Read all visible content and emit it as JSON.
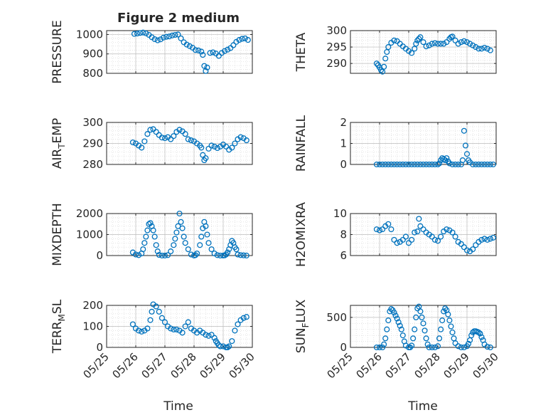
{
  "figure": {
    "title": "Figure 2 medium",
    "xlabel": "Time"
  },
  "chart_data": [
    {
      "type": "scatter",
      "ylabel": "PRESSURE",
      "ylabel_sub": "",
      "xlim": [
        "05/25",
        "05/30"
      ],
      "ylim": [
        800,
        1020
      ],
      "yticks": [
        800,
        900,
        1000
      ],
      "xticks": [
        "05/25",
        "05/26",
        "05/27",
        "05/28",
        "05/29",
        "05/30"
      ],
      "grid": true,
      "color": "#0072BD",
      "x": [
        25.95,
        26.05,
        26.15,
        26.25,
        26.35,
        26.45,
        26.55,
        26.65,
        26.75,
        26.85,
        26.95,
        27.05,
        27.15,
        27.25,
        27.35,
        27.45,
        27.55,
        27.65,
        27.75,
        27.85,
        27.95,
        28.05,
        28.15,
        28.25,
        28.3,
        28.35,
        28.4,
        28.45,
        28.55,
        28.65,
        28.75,
        28.85,
        28.95,
        29.05,
        29.15,
        29.25,
        29.35,
        29.45,
        29.55,
        29.65,
        29.75,
        29.85
      ],
      "y": [
        1003,
        1005,
        1008,
        1010,
        1006,
        998,
        986,
        976,
        970,
        975,
        984,
        988,
        990,
        995,
        998,
        1000,
        980,
        960,
        948,
        940,
        932,
        920,
        918,
        912,
        895,
        838,
        812,
        830,
        905,
        908,
        902,
        890,
        905,
        915,
        922,
        930,
        945,
        962,
        972,
        978,
        980,
        972
      ]
    },
    {
      "type": "scatter",
      "ylabel": "THETA",
      "ylabel_sub": "",
      "xlim": [
        "05/25",
        "05/30"
      ],
      "ylim": [
        287,
        300
      ],
      "yticks": [
        290,
        295,
        300
      ],
      "xticks": [
        "05/25",
        "05/26",
        "05/27",
        "05/28",
        "05/29",
        "05/30"
      ],
      "grid": true,
      "color": "#0072BD",
      "x": [
        25.9,
        25.95,
        26.0,
        26.05,
        26.1,
        26.15,
        26.2,
        26.25,
        26.3,
        26.4,
        26.5,
        26.6,
        26.7,
        26.8,
        26.9,
        27.0,
        27.1,
        27.2,
        27.25,
        27.3,
        27.35,
        27.4,
        27.5,
        27.6,
        27.7,
        27.8,
        27.9,
        28.0,
        28.1,
        28.2,
        28.3,
        28.4,
        28.45,
        28.5,
        28.6,
        28.7,
        28.8,
        28.9,
        29.0,
        29.1,
        29.2,
        29.3,
        29.4,
        29.5,
        29.6,
        29.7,
        29.8
      ],
      "y": [
        290.0,
        289.5,
        288.8,
        288.0,
        287.5,
        289.0,
        291.5,
        293.5,
        295.0,
        296.3,
        297.0,
        296.8,
        296.0,
        295.2,
        294.5,
        293.8,
        293.2,
        294.5,
        296.0,
        297.0,
        297.5,
        298.0,
        296.5,
        295.2,
        295.5,
        296.0,
        296.2,
        296.0,
        296.0,
        296.0,
        296.5,
        297.5,
        298.0,
        298.2,
        297.0,
        296.0,
        296.5,
        296.8,
        296.5,
        296.0,
        295.5,
        295.0,
        294.5,
        294.5,
        294.8,
        294.5,
        294.0
      ]
    },
    {
      "type": "scatter",
      "ylabel": "AIR",
      "ylabel_sub": "T",
      "ylabel_rest": "EMP",
      "xlim": [
        "05/25",
        "05/30"
      ],
      "ylim": [
        280,
        300
      ],
      "yticks": [
        280,
        290,
        300
      ],
      "xticks": [
        "05/25",
        "05/26",
        "05/27",
        "05/28",
        "05/29",
        "05/30"
      ],
      "grid": true,
      "color": "#0072BD",
      "x": [
        25.9,
        26.0,
        26.1,
        26.2,
        26.3,
        26.4,
        26.5,
        26.6,
        26.7,
        26.8,
        26.9,
        27.0,
        27.1,
        27.2,
        27.3,
        27.4,
        27.5,
        27.6,
        27.7,
        27.8,
        27.9,
        28.0,
        28.1,
        28.2,
        28.25,
        28.3,
        28.35,
        28.4,
        28.5,
        28.6,
        28.7,
        28.8,
        28.9,
        29.0,
        29.1,
        29.2,
        29.3,
        29.4,
        29.5,
        29.6,
        29.7,
        29.8
      ],
      "y": [
        290.5,
        290.0,
        289.0,
        288.0,
        291.0,
        294.5,
        296.5,
        296.8,
        295.5,
        294.0,
        292.8,
        292.5,
        293.0,
        292.0,
        293.5,
        295.5,
        296.5,
        295.8,
        294.5,
        292.0,
        291.5,
        291.0,
        290.0,
        289.0,
        288.0,
        284.5,
        282.0,
        283.0,
        287.5,
        289.0,
        288.5,
        287.8,
        288.5,
        289.5,
        288.5,
        287.0,
        288.0,
        290.0,
        292.0,
        293.0,
        292.5,
        291.5
      ]
    },
    {
      "type": "scatter",
      "ylabel": "RAINFALL",
      "ylabel_sub": "",
      "xlim": [
        "05/25",
        "05/30"
      ],
      "ylim": [
        0,
        2
      ],
      "yticks": [
        0,
        1,
        2
      ],
      "xticks": [
        "05/25",
        "05/26",
        "05/27",
        "05/28",
        "05/29",
        "05/30"
      ],
      "grid": true,
      "color": "#0072BD",
      "x": [
        25.9,
        26.0,
        26.1,
        26.2,
        26.3,
        26.4,
        26.5,
        26.6,
        26.7,
        26.8,
        26.9,
        27.0,
        27.1,
        27.2,
        27.3,
        27.4,
        27.5,
        27.6,
        27.7,
        27.8,
        27.9,
        28.0,
        28.05,
        28.1,
        28.15,
        28.2,
        28.25,
        28.3,
        28.35,
        28.4,
        28.5,
        28.6,
        28.7,
        28.8,
        28.85,
        28.9,
        28.95,
        29.0,
        29.05,
        29.1,
        29.2,
        29.3,
        29.4,
        29.5,
        29.6,
        29.7,
        29.8,
        29.9
      ],
      "y": [
        0,
        0,
        0,
        0,
        0,
        0,
        0,
        0,
        0,
        0,
        0,
        0,
        0,
        0,
        0,
        0,
        0,
        0,
        0,
        0,
        0,
        0,
        0.05,
        0.2,
        0.3,
        0.25,
        0.2,
        0.3,
        0.15,
        0.05,
        0,
        0,
        0,
        0,
        0.2,
        1.6,
        0.9,
        0.5,
        0.2,
        0.1,
        0,
        0,
        0,
        0,
        0,
        0,
        0,
        0
      ]
    },
    {
      "type": "scatter",
      "ylabel": "MIXDEPTH",
      "ylabel_sub": "",
      "xlim": [
        "05/25",
        "05/30"
      ],
      "ylim": [
        0,
        2000
      ],
      "yticks": [
        0,
        1000,
        2000
      ],
      "xticks": [
        "05/25",
        "05/26",
        "05/27",
        "05/28",
        "05/29",
        "05/30"
      ],
      "grid": true,
      "color": "#0072BD",
      "x": [
        25.9,
        26.0,
        26.1,
        26.2,
        26.25,
        26.3,
        26.35,
        26.4,
        26.45,
        26.5,
        26.55,
        26.6,
        26.65,
        26.7,
        26.75,
        26.8,
        26.9,
        27.0,
        27.1,
        27.2,
        27.3,
        27.35,
        27.4,
        27.45,
        27.5,
        27.55,
        27.6,
        27.65,
        27.7,
        27.8,
        27.9,
        28.0,
        28.05,
        28.1,
        28.2,
        28.25,
        28.3,
        28.35,
        28.4,
        28.45,
        28.5,
        28.6,
        28.7,
        28.8,
        28.9,
        29.0,
        29.05,
        29.1,
        29.15,
        29.2,
        29.25,
        29.3,
        29.35,
        29.4,
        29.45,
        29.5,
        29.6,
        29.7,
        29.8
      ],
      "y": [
        150,
        50,
        20,
        100,
        300,
        600,
        900,
        1200,
        1500,
        1550,
        1400,
        1200,
        900,
        500,
        200,
        30,
        0,
        0,
        20,
        200,
        500,
        800,
        1100,
        1400,
        2000,
        1600,
        1300,
        900,
        600,
        300,
        50,
        0,
        20,
        100,
        500,
        900,
        1300,
        1600,
        1400,
        1000,
        600,
        300,
        100,
        20,
        0,
        0,
        10,
        50,
        150,
        300,
        500,
        700,
        600,
        400,
        300,
        50,
        20,
        10,
        0
      ]
    },
    {
      "type": "scatter",
      "ylabel": "H2OMIXRA",
      "ylabel_sub": "",
      "xlim": [
        "05/25",
        "05/30"
      ],
      "ylim": [
        6,
        10
      ],
      "yticks": [
        6,
        8,
        10
      ],
      "xticks": [
        "05/25",
        "05/26",
        "05/27",
        "05/28",
        "05/29",
        "05/30"
      ],
      "grid": true,
      "color": "#0072BD",
      "x": [
        25.9,
        26.0,
        26.1,
        26.2,
        26.3,
        26.4,
        26.5,
        26.6,
        26.7,
        26.8,
        26.9,
        27.0,
        27.1,
        27.2,
        27.3,
        27.35,
        27.4,
        27.5,
        27.6,
        27.7,
        27.8,
        27.9,
        28.0,
        28.1,
        28.2,
        28.3,
        28.4,
        28.5,
        28.6,
        28.7,
        28.8,
        28.9,
        29.0,
        29.1,
        29.2,
        29.3,
        29.4,
        29.5,
        29.6,
        29.7,
        29.8,
        29.9
      ],
      "y": [
        8.5,
        8.4,
        8.5,
        8.8,
        9.0,
        8.5,
        7.5,
        7.2,
        7.3,
        7.5,
        7.8,
        7.2,
        7.5,
        8.2,
        8.3,
        9.5,
        8.8,
        8.5,
        8.2,
        8.0,
        7.8,
        7.5,
        7.4,
        7.8,
        8.3,
        8.5,
        8.4,
        8.2,
        7.8,
        7.3,
        7.1,
        6.8,
        6.5,
        6.4,
        6.6,
        7.0,
        7.3,
        7.5,
        7.6,
        7.5,
        7.6,
        7.7
      ]
    },
    {
      "type": "scatter",
      "ylabel": "TERR",
      "ylabel_sub": "M",
      "ylabel_rest": "SL",
      "xlim": [
        "05/25",
        "05/30"
      ],
      "ylim": [
        0,
        200
      ],
      "yticks": [
        0,
        100,
        200
      ],
      "xticks": [
        "05/25",
        "05/26",
        "05/27",
        "05/28",
        "05/29",
        "05/30"
      ],
      "grid": true,
      "color": "#0072BD",
      "x": [
        25.9,
        26.0,
        26.1,
        26.2,
        26.3,
        26.4,
        26.5,
        26.55,
        26.6,
        26.7,
        26.8,
        26.9,
        27.0,
        27.1,
        27.2,
        27.3,
        27.4,
        27.5,
        27.6,
        27.7,
        27.8,
        27.9,
        28.0,
        28.1,
        28.2,
        28.3,
        28.4,
        28.5,
        28.6,
        28.7,
        28.75,
        28.8,
        28.85,
        28.9,
        29.0,
        29.1,
        29.15,
        29.2,
        29.3,
        29.4,
        29.5,
        29.6,
        29.7,
        29.8
      ],
      "y": [
        110,
        90,
        80,
        75,
        80,
        90,
        130,
        170,
        205,
        195,
        170,
        140,
        120,
        100,
        90,
        85,
        85,
        80,
        70,
        100,
        120,
        90,
        80,
        70,
        80,
        70,
        60,
        55,
        60,
        45,
        30,
        20,
        10,
        5,
        5,
        0,
        0,
        5,
        30,
        80,
        110,
        130,
        140,
        145
      ]
    },
    {
      "type": "scatter",
      "ylabel": "SUN",
      "ylabel_sub": "F",
      "ylabel_rest": "LUX",
      "xlim": [
        "05/25",
        "05/30"
      ],
      "ylim": [
        0,
        700
      ],
      "yticks": [
        0,
        500
      ],
      "xticks": [
        "05/25",
        "05/26",
        "05/27",
        "05/28",
        "05/29",
        "05/30"
      ],
      "grid": true,
      "color": "#0072BD",
      "x": [
        25.9,
        26.0,
        26.1,
        26.15,
        26.2,
        26.25,
        26.3,
        26.35,
        26.4,
        26.45,
        26.5,
        26.55,
        26.6,
        26.65,
        26.7,
        26.75,
        26.8,
        26.85,
        26.9,
        27.0,
        27.05,
        27.1,
        27.15,
        27.2,
        27.25,
        27.3,
        27.35,
        27.4,
        27.45,
        27.5,
        27.55,
        27.6,
        27.65,
        27.7,
        27.8,
        27.9,
        28.0,
        28.05,
        28.1,
        28.15,
        28.2,
        28.25,
        28.3,
        28.35,
        28.4,
        28.45,
        28.5,
        28.55,
        28.6,
        28.7,
        28.8,
        28.9,
        29.0,
        29.05,
        29.1,
        29.15,
        29.2,
        29.25,
        29.3,
        29.35,
        29.4,
        29.45,
        29.5,
        29.55,
        29.6,
        29.7,
        29.8
      ],
      "y": [
        0,
        0,
        0,
        50,
        150,
        300,
        450,
        600,
        640,
        620,
        580,
        530,
        480,
        420,
        360,
        300,
        200,
        100,
        30,
        0,
        0,
        30,
        150,
        300,
        500,
        650,
        680,
        600,
        500,
        400,
        280,
        150,
        50,
        0,
        0,
        0,
        20,
        150,
        300,
        450,
        600,
        650,
        620,
        550,
        450,
        350,
        250,
        150,
        70,
        20,
        0,
        0,
        20,
        60,
        120,
        200,
        250,
        270,
        270,
        260,
        250,
        230,
        170,
        120,
        50,
        10,
        0
      ]
    }
  ]
}
